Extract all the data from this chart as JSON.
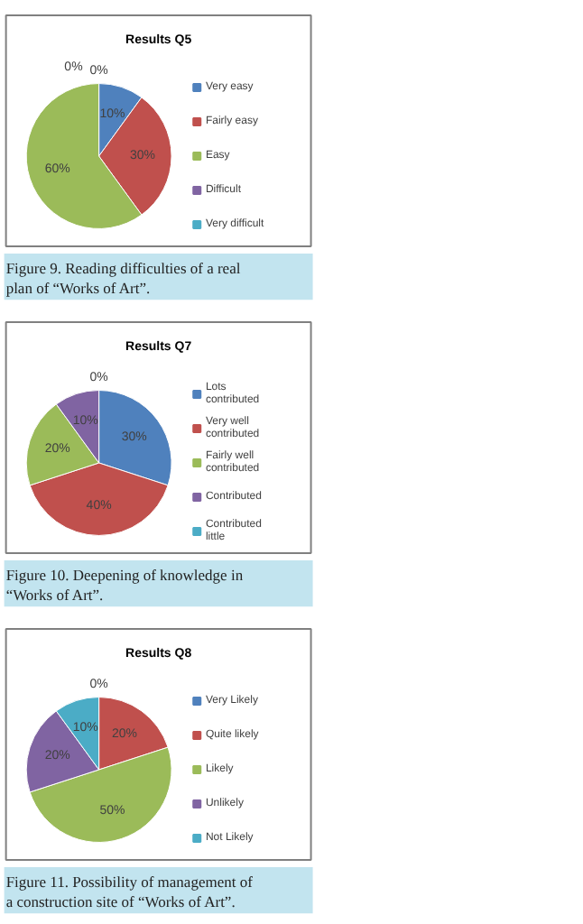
{
  "chart_data": [
    {
      "type": "pie",
      "title": "Results Q5",
      "categories": [
        "Very easy",
        "Fairly easy",
        "Easy",
        "Difficult",
        "Very difficult"
      ],
      "values": [
        10,
        30,
        60,
        0,
        0
      ],
      "value_labels": [
        "10%",
        "30%",
        "60%",
        "0%",
        "0%"
      ],
      "colors": [
        "#4f81bd",
        "#c0504d",
        "#9bbb59",
        "#8064a2",
        "#4bacc6"
      ],
      "legend": "right",
      "annotations": [
        "Figure 9. Reading difficulties of a real plan of “Works of Art”."
      ]
    },
    {
      "type": "pie",
      "title": "Results Q7",
      "categories": [
        "Lots contributed",
        "Very well contributed",
        "Fairly well contributed",
        "Contributed",
        "Contributed little"
      ],
      "values": [
        30,
        40,
        20,
        10,
        0
      ],
      "value_labels": [
        "30%",
        "40%",
        "20%",
        "10%",
        "0%"
      ],
      "colors": [
        "#4f81bd",
        "#c0504d",
        "#9bbb59",
        "#8064a2",
        "#4bacc6"
      ],
      "legend": "right",
      "annotations": [
        "Figure 10. Deepening of knowledge in “Works of Art”."
      ]
    },
    {
      "type": "pie",
      "title": "Results Q8",
      "categories": [
        "Very Likely",
        "Quite likely",
        "Likely",
        "Unlikely",
        "Not Likely"
      ],
      "values": [
        0,
        20,
        50,
        20,
        10
      ],
      "value_labels": [
        "0%",
        "20%",
        "50%",
        "20%",
        "10%"
      ],
      "colors": [
        "#4f81bd",
        "#c0504d",
        "#9bbb59",
        "#8064a2",
        "#4bacc6"
      ],
      "legend": "right",
      "annotations": [
        "Figure 11. Possibility of management of a construction site of “Works of Art”."
      ]
    }
  ]
}
